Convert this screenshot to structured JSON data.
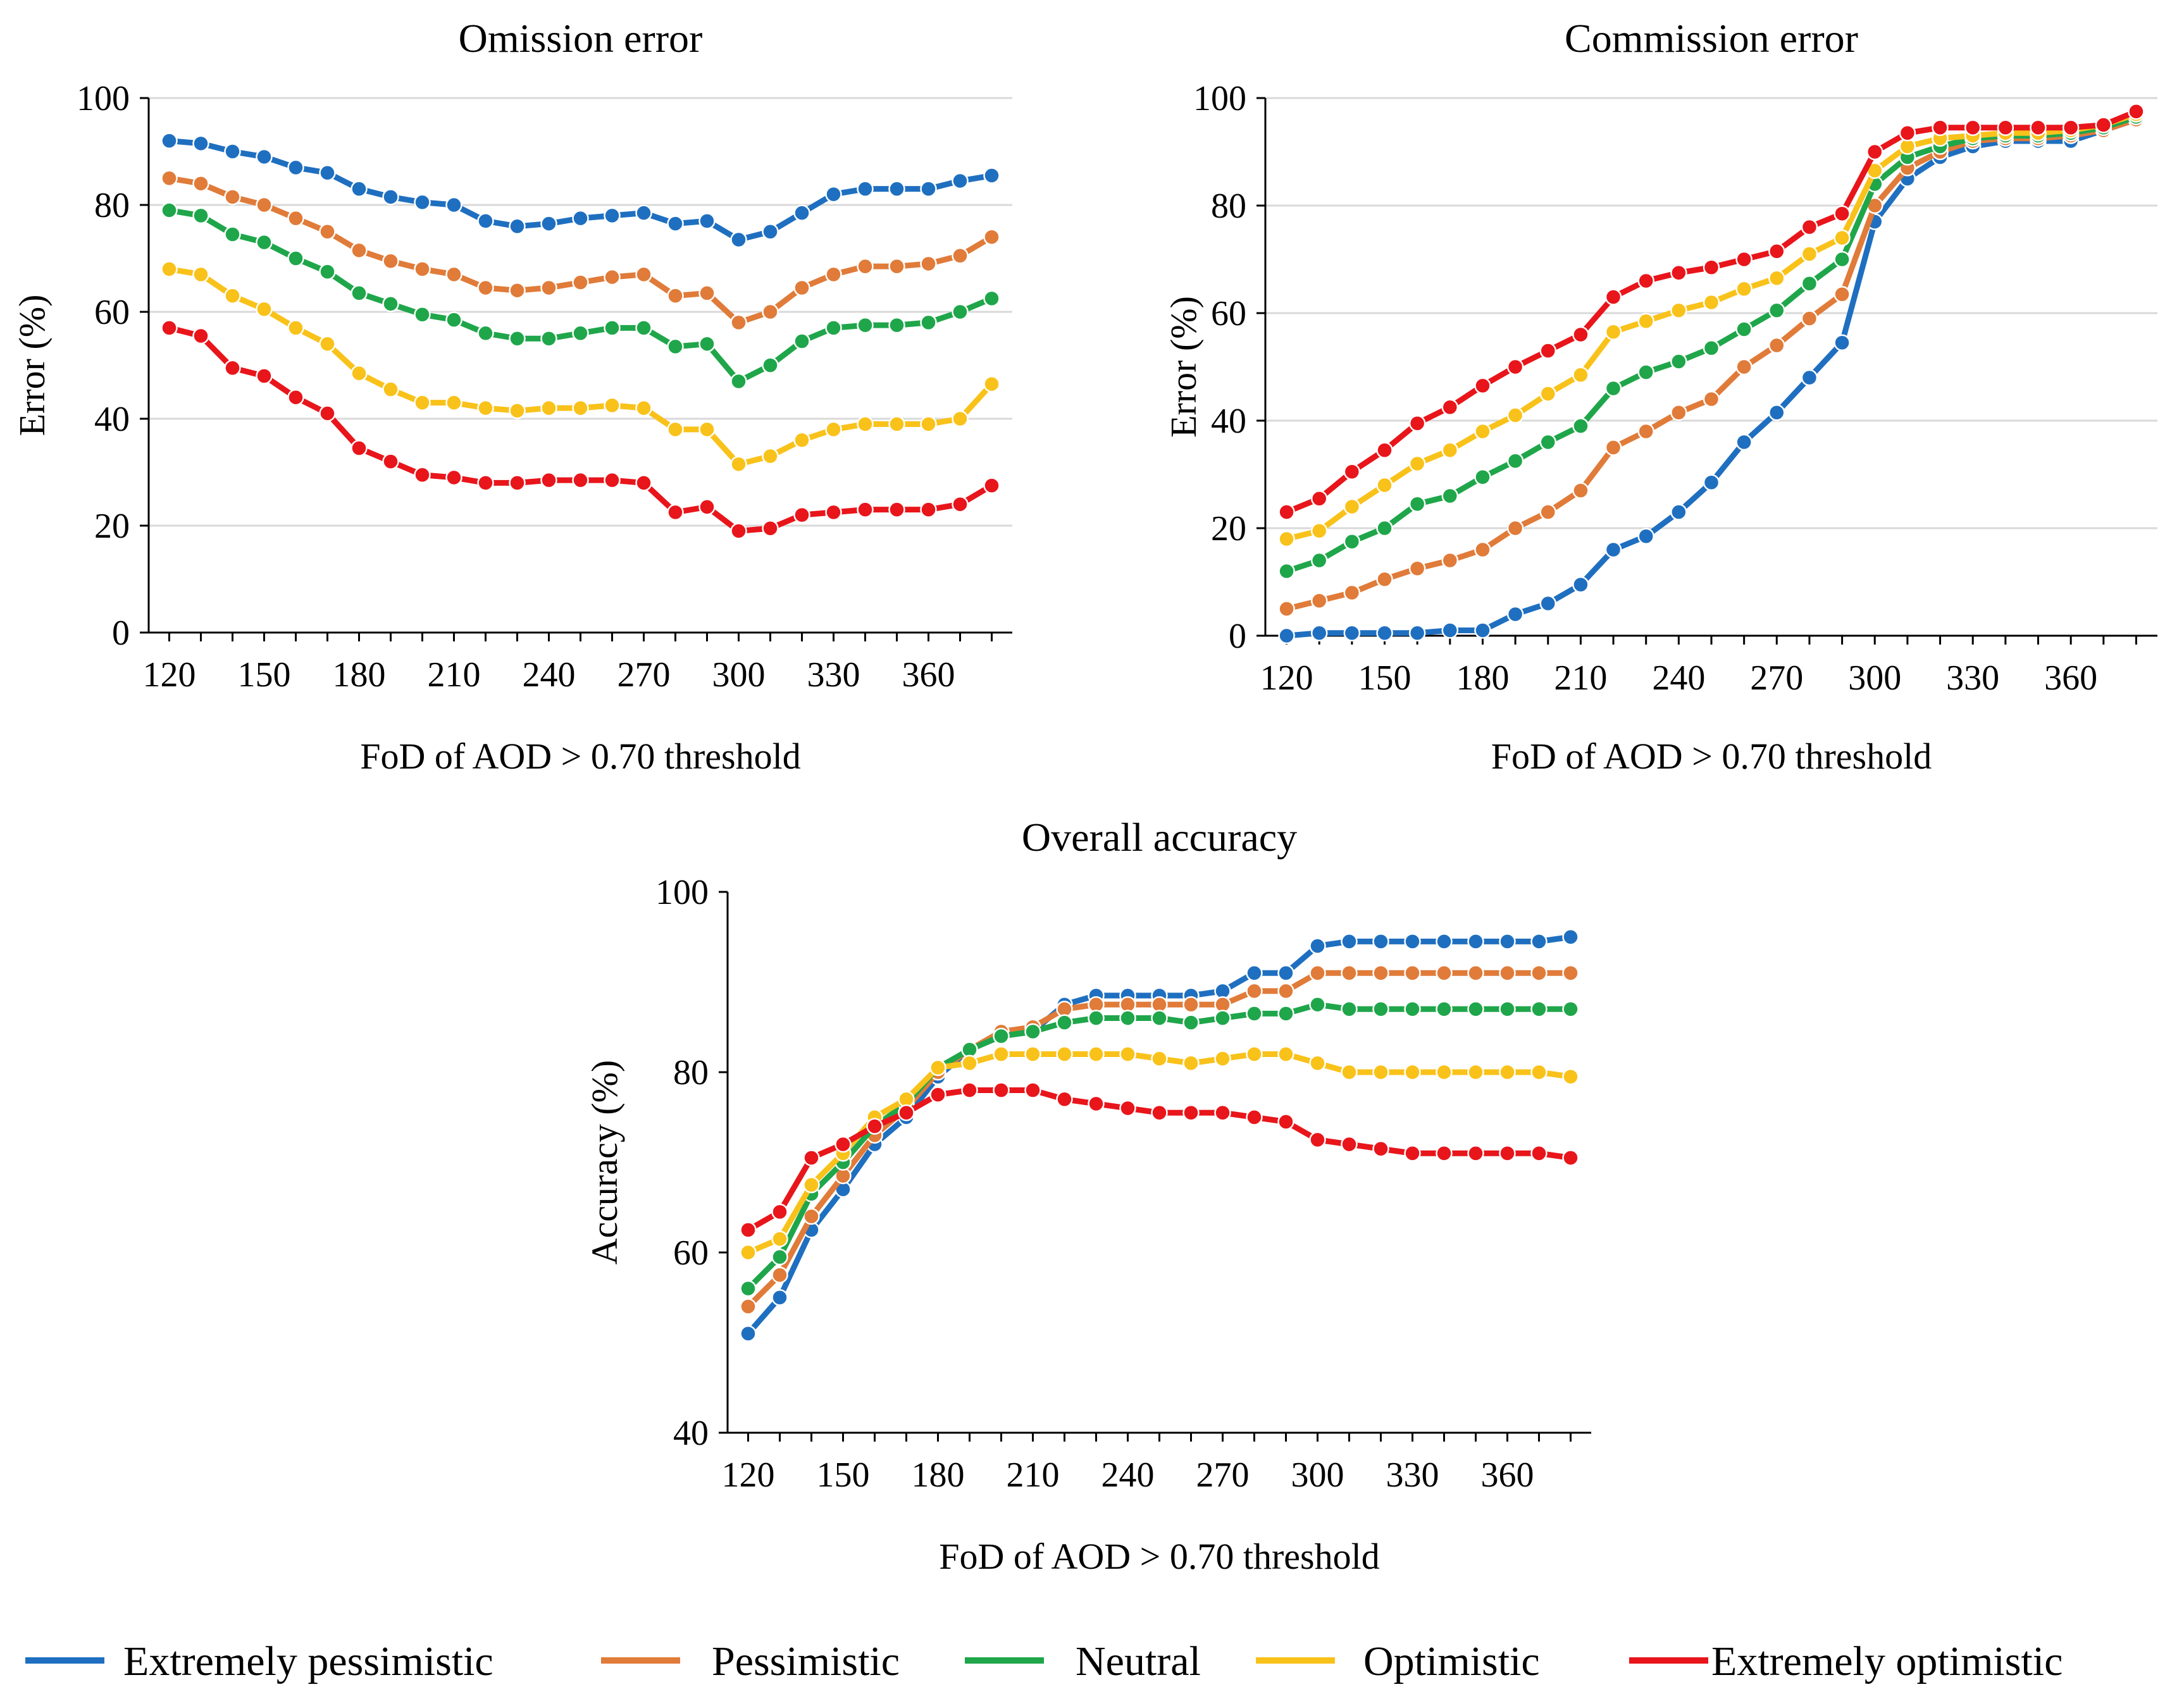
{
  "chart_data": [
    {
      "type": "line",
      "title": "Omission error",
      "xlabel": "FoD of AOD > 0.70 threshold",
      "ylabel": "Error (%)",
      "ylim": [
        0,
        100
      ],
      "yticks": [
        0,
        20,
        40,
        60,
        80,
        100
      ],
      "xticks": [
        120,
        150,
        180,
        210,
        240,
        270,
        300,
        330,
        360
      ],
      "grid": true,
      "x": [
        120,
        130,
        140,
        150,
        160,
        170,
        180,
        190,
        200,
        210,
        220,
        230,
        240,
        250,
        260,
        270,
        280,
        290,
        300,
        310,
        320,
        330,
        340,
        350,
        360,
        370,
        380
      ],
      "series": [
        {
          "name": "Extremely pessimistic",
          "color": "#1f6fc0",
          "values": [
            92,
            91.5,
            90,
            89,
            87,
            86,
            83,
            81.5,
            80.5,
            80,
            77,
            76,
            76.5,
            77.5,
            78,
            78.5,
            76.5,
            77,
            73.5,
            75,
            78.5,
            82,
            83,
            83,
            83,
            84.5,
            85.5
          ]
        },
        {
          "name": "Pessimistic",
          "color": "#e07b39",
          "values": [
            85,
            84,
            81.5,
            80,
            77.5,
            75,
            71.5,
            69.5,
            68,
            67,
            64.5,
            64,
            64.5,
            65.5,
            66.5,
            67,
            63,
            63.5,
            58,
            60,
            64.5,
            67,
            68.5,
            68.5,
            69,
            70.5,
            74
          ]
        },
        {
          "name": "Neutral",
          "color": "#1fa64a",
          "values": [
            79,
            78,
            74.5,
            73,
            70,
            67.5,
            63.5,
            61.5,
            59.5,
            58.5,
            56,
            55,
            55,
            56,
            57,
            57,
            53.5,
            54,
            47,
            50,
            54.5,
            57,
            57.5,
            57.5,
            58,
            60,
            62.5
          ]
        },
        {
          "name": "Optimistic",
          "color": "#f9c21a",
          "values": [
            68,
            67,
            63,
            60.5,
            57,
            54,
            48.5,
            45.5,
            43,
            43,
            42,
            41.5,
            42,
            42,
            42.5,
            42,
            38,
            38,
            31.5,
            33,
            36,
            38,
            39,
            39,
            39,
            40,
            46.5
          ]
        },
        {
          "name": "Extremely optimistic",
          "color": "#e8151b",
          "values": [
            57,
            55.5,
            49.5,
            48,
            44,
            41,
            34.5,
            32,
            29.5,
            29,
            28,
            28,
            28.5,
            28.5,
            28.5,
            28,
            22.5,
            23.5,
            19,
            19.5,
            22,
            22.5,
            23,
            23,
            23,
            24,
            27.5
          ]
        }
      ]
    },
    {
      "type": "line",
      "title": "Commission error",
      "xlabel": "FoD of AOD > 0.70 threshold",
      "ylabel": "Error (%)",
      "ylim": [
        0,
        100
      ],
      "yticks": [
        0,
        20,
        40,
        60,
        80,
        100
      ],
      "xticks": [
        120,
        150,
        180,
        210,
        240,
        270,
        300,
        330,
        360
      ],
      "grid": true,
      "x": [
        120,
        130,
        140,
        150,
        160,
        170,
        180,
        190,
        200,
        210,
        220,
        230,
        240,
        250,
        260,
        270,
        280,
        290,
        300,
        310,
        320,
        330,
        340,
        350,
        360,
        370,
        380
      ],
      "series": [
        {
          "name": "Extremely pessimistic",
          "color": "#1f6fc0",
          "values": [
            0,
            0.5,
            0.5,
            0.5,
            0.5,
            1,
            1,
            4,
            6,
            9.5,
            16,
            18.5,
            23,
            28.5,
            36,
            41.5,
            48,
            54.5,
            77,
            85,
            89,
            91,
            92,
            92,
            92,
            94,
            96
          ]
        },
        {
          "name": "Pessimistic",
          "color": "#e07b39",
          "values": [
            5,
            6.5,
            8,
            10.5,
            12.5,
            14,
            16,
            20,
            23,
            27,
            35,
            38,
            41.5,
            44,
            50,
            54,
            59,
            63.5,
            80,
            87,
            90,
            92,
            92.5,
            92.5,
            93,
            94,
            96
          ]
        },
        {
          "name": "Neutral",
          "color": "#1fa64a",
          "values": [
            12,
            14,
            17.5,
            20,
            24.5,
            26,
            29.5,
            32.5,
            36,
            39,
            46,
            49,
            51,
            53.5,
            57,
            60.5,
            65.5,
            70,
            84,
            89,
            91,
            92.5,
            93,
            93,
            93.5,
            94.5,
            96.5
          ]
        },
        {
          "name": "Optimistic",
          "color": "#f9c21a",
          "values": [
            18,
            19.5,
            24,
            28,
            32,
            34.5,
            38,
            41,
            45,
            48.5,
            56.5,
            58.5,
            60.5,
            62,
            64.5,
            66.5,
            71,
            74,
            86.5,
            91,
            92.5,
            93,
            93.5,
            93.5,
            94,
            95,
            97
          ]
        },
        {
          "name": "Extremely optimistic",
          "color": "#e8151b",
          "values": [
            23,
            25.5,
            30.5,
            34.5,
            39.5,
            42.5,
            46.5,
            50,
            53,
            56,
            63,
            66,
            67.5,
            68.5,
            70,
            71.5,
            76,
            78.5,
            90,
            93.5,
            94.5,
            94.5,
            94.5,
            94.5,
            94.5,
            95,
            97.5
          ]
        }
      ]
    },
    {
      "type": "line",
      "title": "Overall accuracy",
      "xlabel": "FoD of AOD > 0.70 threshold",
      "ylabel": "Accuracy (%)",
      "ylim": [
        40,
        100
      ],
      "yticks": [
        40,
        60,
        80,
        100
      ],
      "xticks": [
        120,
        150,
        180,
        210,
        240,
        270,
        300,
        330,
        360
      ],
      "grid": false,
      "x": [
        120,
        130,
        140,
        150,
        160,
        170,
        180,
        190,
        200,
        210,
        220,
        230,
        240,
        250,
        260,
        270,
        280,
        290,
        300,
        310,
        320,
        330,
        340,
        350,
        360,
        370,
        380
      ],
      "series": [
        {
          "name": "Extremely pessimistic",
          "color": "#1f6fc0",
          "values": [
            51,
            55,
            62.5,
            67,
            72,
            75,
            79.5,
            82.5,
            84,
            84.5,
            87.5,
            88.5,
            88.5,
            88.5,
            88.5,
            89,
            91,
            91,
            94,
            94.5,
            94.5,
            94.5,
            94.5,
            94.5,
            94.5,
            94.5,
            95
          ]
        },
        {
          "name": "Pessimistic",
          "color": "#e07b39",
          "values": [
            54,
            57.5,
            64,
            68.5,
            73,
            76,
            80,
            82.5,
            84.5,
            85,
            87,
            87.5,
            87.5,
            87.5,
            87.5,
            87.5,
            89,
            89,
            91,
            91,
            91,
            91,
            91,
            91,
            91,
            91,
            91
          ]
        },
        {
          "name": "Neutral",
          "color": "#1fa64a",
          "values": [
            56,
            59.5,
            66.5,
            70,
            74,
            76.5,
            80.5,
            82.5,
            84,
            84.5,
            85.5,
            86,
            86,
            86,
            85.5,
            86,
            86.5,
            86.5,
            87.5,
            87,
            87,
            87,
            87,
            87,
            87,
            87,
            87
          ]
        },
        {
          "name": "Optimistic",
          "color": "#f9c21a",
          "values": [
            60,
            61.5,
            67.5,
            71,
            75,
            77,
            80.5,
            81,
            82,
            82,
            82,
            82,
            82,
            81.5,
            81,
            81.5,
            82,
            82,
            81,
            80,
            80,
            80,
            80,
            80,
            80,
            80,
            79.5
          ]
        },
        {
          "name": "Extremely optimistic",
          "color": "#e8151b",
          "values": [
            62.5,
            64.5,
            70.5,
            72,
            74,
            75.5,
            77.5,
            78,
            78,
            78,
            77,
            76.5,
            76,
            75.5,
            75.5,
            75.5,
            75,
            74.5,
            72.5,
            72,
            71.5,
            71,
            71,
            71,
            71,
            71,
            70.5
          ]
        }
      ]
    }
  ],
  "legend": {
    "items": [
      {
        "label": "Extremely pessimistic",
        "color": "#1f6fc0"
      },
      {
        "label": "Pessimistic",
        "color": "#e07b39"
      },
      {
        "label": "Neutral",
        "color": "#1fa64a"
      },
      {
        "label": "Optimistic",
        "color": "#f9c21a"
      },
      {
        "label": "Extremely optimistic",
        "color": "#e8151b"
      }
    ]
  }
}
